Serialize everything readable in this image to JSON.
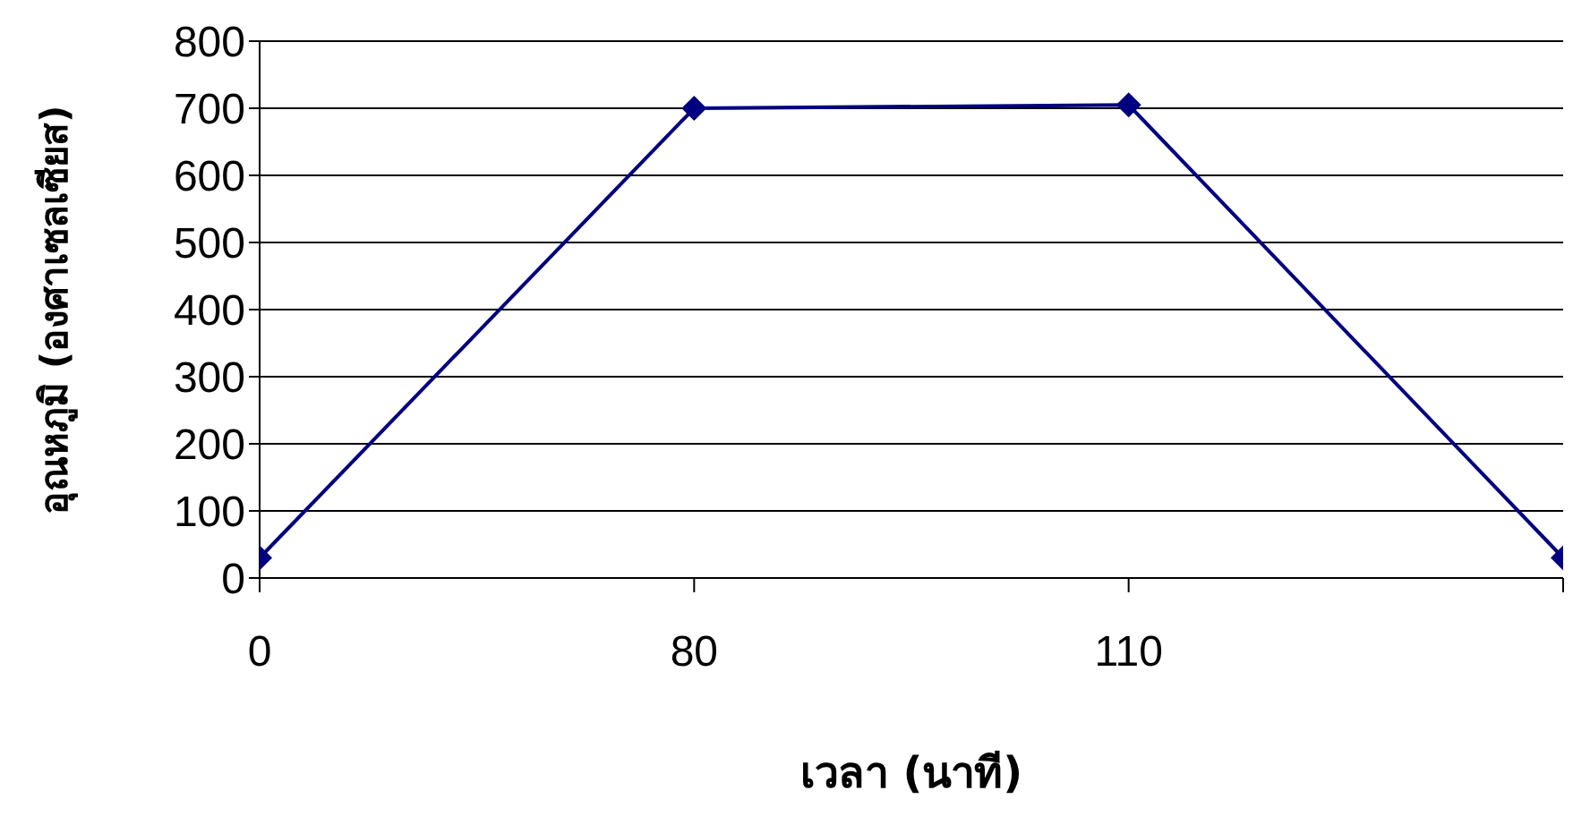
{
  "chart_data": {
    "type": "line",
    "xlabel": "เวลา (นาที)",
    "ylabel": "อุณหภูมิ (องศาเซลเซียส)",
    "categories": [
      "0",
      "80",
      "110",
      null
    ],
    "series": [
      {
        "color": "#000080",
        "values": [
          30,
          700,
          705,
          30
        ]
      }
    ],
    "ylim": [
      0,
      800
    ],
    "yticks": [
      0,
      100,
      200,
      300,
      400,
      500,
      600,
      700,
      800
    ],
    "grid": "y",
    "legend": false,
    "marker": "diamond",
    "line_style": "solid"
  }
}
